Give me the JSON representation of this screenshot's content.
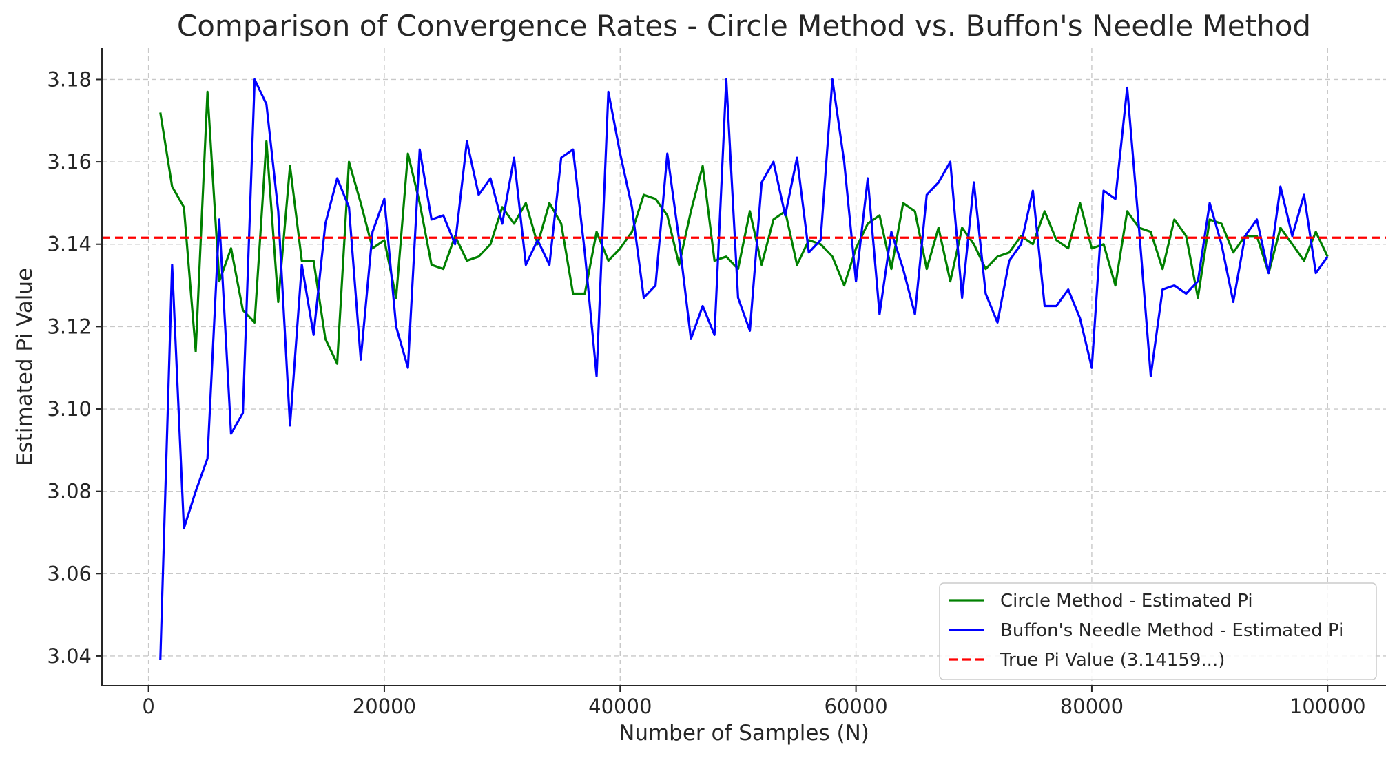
{
  "chart_data": {
    "type": "line",
    "title": "Comparison of Convergence Rates - Circle Method vs. Buffon's Needle Method",
    "xlabel": "Number of Samples (N)",
    "ylabel": "Estimated Pi Value",
    "xlim": [
      -3950,
      104950
    ],
    "ylim": [
      3.0328,
      3.1876
    ],
    "xticks": [
      0,
      20000,
      40000,
      60000,
      80000,
      100000
    ],
    "xtick_labels": [
      "0",
      "20000",
      "40000",
      "60000",
      "80000",
      "100000"
    ],
    "yticks": [
      3.04,
      3.06,
      3.08,
      3.1,
      3.12,
      3.14,
      3.16,
      3.18
    ],
    "ytick_labels": [
      "3.04",
      "3.06",
      "3.08",
      "3.10",
      "3.12",
      "3.14",
      "3.16",
      "3.18"
    ],
    "grid": true,
    "legend_position": "lower-right",
    "x_start": 1000,
    "x_step": 1000,
    "series": [
      {
        "name": "Circle Method - Estimated Pi",
        "color": "#008000",
        "dash": "solid",
        "values": [
          3.172,
          3.154,
          3.149,
          3.114,
          3.177,
          3.131,
          3.139,
          3.124,
          3.121,
          3.165,
          3.126,
          3.159,
          3.136,
          3.136,
          3.117,
          3.111,
          3.16,
          3.15,
          3.139,
          3.141,
          3.127,
          3.162,
          3.15,
          3.135,
          3.134,
          3.142,
          3.136,
          3.137,
          3.14,
          3.149,
          3.145,
          3.15,
          3.14,
          3.15,
          3.145,
          3.128,
          3.128,
          3.143,
          3.136,
          3.139,
          3.143,
          3.152,
          3.151,
          3.147,
          3.135,
          3.148,
          3.159,
          3.136,
          3.137,
          3.134,
          3.148,
          3.135,
          3.146,
          3.148,
          3.135,
          3.141,
          3.14,
          3.137,
          3.13,
          3.139,
          3.145,
          3.147,
          3.134,
          3.15,
          3.148,
          3.134,
          3.144,
          3.131,
          3.144,
          3.14,
          3.134,
          3.137,
          3.138,
          3.142,
          3.14,
          3.148,
          3.141,
          3.139,
          3.15,
          3.139,
          3.14,
          3.13,
          3.148,
          3.144,
          3.143,
          3.134,
          3.146,
          3.142,
          3.127,
          3.146,
          3.145,
          3.138,
          3.142,
          3.142,
          3.133,
          3.144,
          3.14,
          3.136,
          3.143,
          3.137
        ]
      },
      {
        "name": "Buffon's Needle Method - Estimated Pi",
        "color": "#0000ff",
        "dash": "solid",
        "values": [
          3.039,
          3.135,
          3.071,
          3.08,
          3.088,
          3.146,
          3.094,
          3.099,
          3.18,
          3.174,
          3.148,
          3.096,
          3.135,
          3.118,
          3.145,
          3.156,
          3.149,
          3.112,
          3.143,
          3.151,
          3.12,
          3.11,
          3.163,
          3.146,
          3.147,
          3.14,
          3.165,
          3.152,
          3.156,
          3.145,
          3.161,
          3.135,
          3.141,
          3.135,
          3.161,
          3.163,
          3.138,
          3.108,
          3.177,
          3.162,
          3.149,
          3.127,
          3.13,
          3.162,
          3.141,
          3.117,
          3.125,
          3.118,
          3.18,
          3.127,
          3.119,
          3.155,
          3.16,
          3.147,
          3.161,
          3.138,
          3.141,
          3.18,
          3.16,
          3.131,
          3.156,
          3.123,
          3.143,
          3.134,
          3.123,
          3.152,
          3.155,
          3.16,
          3.127,
          3.155,
          3.128,
          3.121,
          3.136,
          3.14,
          3.153,
          3.125,
          3.125,
          3.129,
          3.122,
          3.11,
          3.153,
          3.151,
          3.178,
          3.144,
          3.108,
          3.129,
          3.13,
          3.128,
          3.131,
          3.15,
          3.14,
          3.126,
          3.142,
          3.146,
          3.133,
          3.154,
          3.142,
          3.152,
          3.133,
          3.137
        ]
      },
      {
        "name": "True Pi Value (3.14159...)",
        "color": "#ff0000",
        "dash": "dashed",
        "constant": 3.14159
      }
    ]
  }
}
